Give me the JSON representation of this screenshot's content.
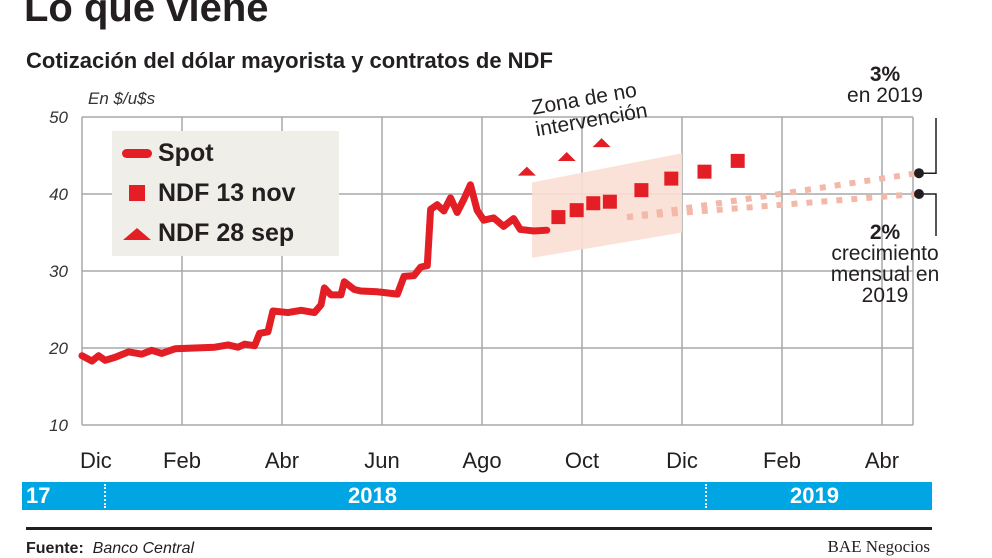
{
  "title": "Lo que viene",
  "subtitle": "Cotización del dólar mayorista y contratos de NDF",
  "chart_data": {
    "type": "line",
    "ylabel": "En $/u$s",
    "ylim": [
      10,
      50
    ],
    "yticks": [
      10,
      20,
      30,
      40,
      50
    ],
    "grid": true,
    "legend_placement": "top-left",
    "x_unit_note_months_from": "Dic 2017",
    "xticks": [
      {
        "label": "Dic",
        "m": 0
      },
      {
        "label": "Feb",
        "m": 2
      },
      {
        "label": "Abr",
        "m": 4
      },
      {
        "label": "Jun",
        "m": 6
      },
      {
        "label": "Ago",
        "m": 8
      },
      {
        "label": "Oct",
        "m": 10
      },
      {
        "label": "Dic",
        "m": 12
      },
      {
        "label": "Feb",
        "m": 14
      },
      {
        "label": "Abr",
        "m": 16
      }
    ],
    "years": [
      {
        "label": "17"
      },
      {
        "label": "2018"
      },
      {
        "label": "2019"
      }
    ],
    "series": [
      {
        "name": "Spot",
        "kind": "line",
        "points": [
          [
            0,
            19
          ],
          [
            0.3,
            18.3
          ],
          [
            0.5,
            19
          ],
          [
            0.7,
            18.4
          ],
          [
            1,
            18.8
          ],
          [
            1.4,
            19.5
          ],
          [
            1.8,
            19.2
          ],
          [
            2.1,
            19.7
          ],
          [
            2.4,
            19.3
          ],
          [
            2.8,
            19.9
          ],
          [
            3.4,
            20
          ],
          [
            4,
            20.1
          ],
          [
            4.4,
            20.4
          ],
          [
            4.7,
            20.1
          ],
          [
            4.9,
            20.5
          ],
          [
            5.2,
            20.3
          ],
          [
            5.35,
            21.9
          ],
          [
            5.6,
            22.1
          ],
          [
            5.75,
            24.8
          ],
          [
            6.2,
            24.6
          ],
          [
            6.6,
            24.9
          ],
          [
            7.0,
            24.6
          ],
          [
            7.2,
            25.6
          ],
          [
            7.3,
            27.8
          ],
          [
            7.5,
            26.9
          ],
          [
            7.8,
            26.9
          ],
          [
            7.9,
            28.6
          ],
          [
            8.2,
            27.6
          ],
          [
            8.4,
            27.4
          ],
          [
            8.9,
            27.3
          ],
          [
            9.5,
            27
          ],
          [
            9.7,
            29.3
          ],
          [
            10.0,
            29.4
          ],
          [
            10.2,
            30.5
          ],
          [
            10.4,
            30.7
          ],
          [
            10.5,
            38
          ],
          [
            10.7,
            38.6
          ],
          [
            10.9,
            37.8
          ],
          [
            11.1,
            39.5
          ],
          [
            11.3,
            37.6
          ],
          [
            11.5,
            39.3
          ],
          [
            11.7,
            41.2
          ],
          [
            11.9,
            37.9
          ],
          [
            12.1,
            36.6
          ],
          [
            12.4,
            36.9
          ],
          [
            12.7,
            35.8
          ],
          [
            13.0,
            36.8
          ],
          [
            13.2,
            35.4
          ],
          [
            13.6,
            35.2
          ],
          [
            14.0,
            35.3
          ]
        ]
      },
      {
        "name": "NDF 13 nov",
        "kind": "square",
        "points": [
          [
            14.35,
            37.0
          ],
          [
            14.9,
            37.9
          ],
          [
            15.4,
            38.8
          ],
          [
            15.9,
            39.0
          ],
          [
            16.85,
            40.5
          ],
          [
            17.75,
            42.0
          ],
          [
            18.75,
            42.9
          ],
          [
            19.75,
            44.3
          ]
        ]
      },
      {
        "name": "NDF 28 sep",
        "kind": "triangle",
        "points": [
          [
            13.4,
            42.9
          ],
          [
            14.6,
            44.8
          ],
          [
            15.65,
            46.6
          ]
        ]
      }
    ],
    "annotations": [
      {
        "text": "Zona de no intervención"
      },
      {
        "text_bold": "3%",
        "text": "en 2019"
      },
      {
        "text_bold": "2%",
        "text": "crecimiento mensual en 2019"
      }
    ],
    "colors": {
      "spot": "#e31e24",
      "ndf": "#e31e24",
      "zone": "#fbdfd4",
      "trend": "#f2b8a8",
      "year_bar": "#00a6e4",
      "grid": "#a7a9ac"
    }
  },
  "source_label": "Fuente:",
  "source": "Banco Central",
  "credit": "BAE Negocios"
}
